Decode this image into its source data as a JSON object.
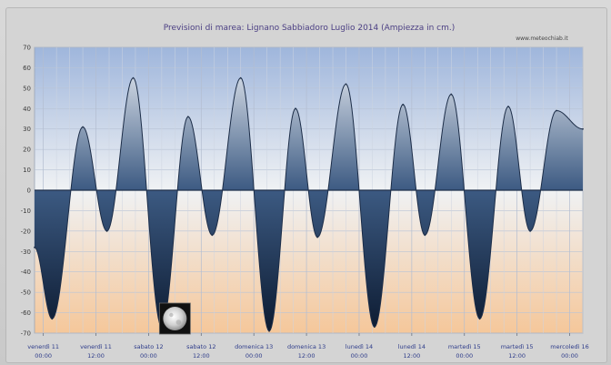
{
  "chart_data": {
    "type": "area",
    "title": "Previsioni di marea: Lignano Sabbiadoro Luglio 2014 (Ampiezza in cm.)",
    "source_label": "www.meteochiab.it",
    "ylim": [
      -70,
      70
    ],
    "yticks": [
      70,
      60,
      50,
      40,
      30,
      20,
      10,
      0,
      -10,
      -20,
      -30,
      -40,
      -50,
      -60,
      -70
    ],
    "grid": true,
    "x_unit": "hours since venerdì 11 00:00",
    "xlim": [
      -2,
      123
    ],
    "categories": [
      {
        "day": "venerdì 11",
        "time": "00:00",
        "hour": 0
      },
      {
        "day": "venerdì 11",
        "time": "12:00",
        "hour": 12
      },
      {
        "day": "sabato 12",
        "time": "00:00",
        "hour": 24
      },
      {
        "day": "sabato 12",
        "time": "12:00",
        "hour": 36
      },
      {
        "day": "domenica 13",
        "time": "00:00",
        "hour": 48
      },
      {
        "day": "domenica 13",
        "time": "12:00",
        "hour": 60
      },
      {
        "day": "lunedì 14",
        "time": "00:00",
        "hour": 72
      },
      {
        "day": "lunedì 14",
        "time": "12:00",
        "hour": 84
      },
      {
        "day": "martedì 15",
        "time": "00:00",
        "hour": 96
      },
      {
        "day": "martedì 15",
        "time": "12:00",
        "hour": 108
      },
      {
        "day": "mercoledì 16",
        "time": "00:00",
        "hour": 120
      }
    ],
    "series": [
      {
        "points": [
          {
            "hour": -2,
            "value": -28
          },
          {
            "hour": 2,
            "value": -63
          },
          {
            "hour": 9,
            "value": 31
          },
          {
            "hour": 14.5,
            "value": -20
          },
          {
            "hour": 20.5,
            "value": 55
          },
          {
            "hour": 27,
            "value": -67
          },
          {
            "hour": 33,
            "value": 36
          },
          {
            "hour": 38.5,
            "value": -22
          },
          {
            "hour": 45,
            "value": 55
          },
          {
            "hour": 51.5,
            "value": -69
          },
          {
            "hour": 57.5,
            "value": 40
          },
          {
            "hour": 62.5,
            "value": -23
          },
          {
            "hour": 69,
            "value": 52
          },
          {
            "hour": 75.5,
            "value": -67
          },
          {
            "hour": 82,
            "value": 42
          },
          {
            "hour": 87,
            "value": -22
          },
          {
            "hour": 93,
            "value": 47
          },
          {
            "hour": 99.5,
            "value": -63
          },
          {
            "hour": 106,
            "value": 41
          },
          {
            "hour": 111,
            "value": -20
          },
          {
            "hour": 117,
            "value": 39
          },
          {
            "hour": 123,
            "value": 30
          }
        ]
      }
    ],
    "annotations": [
      {
        "type": "full-moon-icon",
        "hour": 30
      }
    ]
  }
}
